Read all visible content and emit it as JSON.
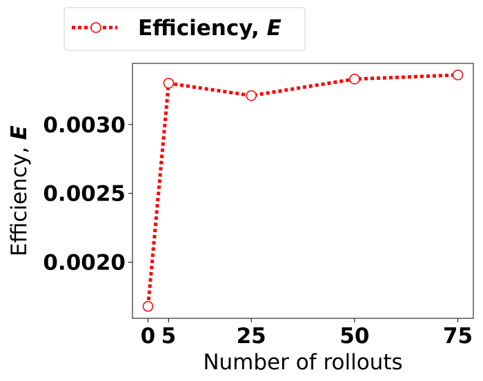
{
  "chart_data": {
    "type": "line",
    "x": [
      0,
      5,
      25,
      50,
      75
    ],
    "series": [
      {
        "name": "Efficiency, ",
        "name_italic": "E",
        "values": [
          0.00168,
          0.0033,
          0.00321,
          0.00333,
          0.00336
        ],
        "color": "#ff0000",
        "line_style": "dotted",
        "marker": "open-circle"
      }
    ],
    "xlabel": "Number of rollouts",
    "ylabel": "Efficiency, ",
    "ylabel_italic": "E",
    "xticks": [
      "0",
      "5",
      "25",
      "50",
      "75"
    ],
    "xtick_values": [
      0,
      5,
      25,
      50,
      75
    ],
    "yticks": [
      "0.0020",
      "0.0025",
      "0.0030"
    ],
    "ytick_values": [
      0.002,
      0.0025,
      0.003
    ],
    "xlim": [
      -3.75,
      78.75
    ],
    "ylim": [
      0.001593,
      0.003444
    ],
    "grid": false,
    "legend_position": "top-left, above plot"
  }
}
